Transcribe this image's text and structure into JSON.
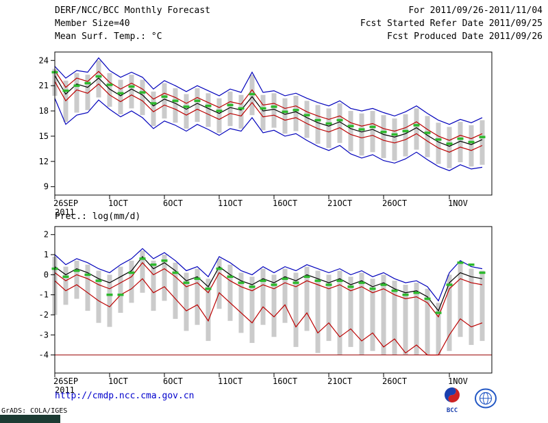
{
  "header": {
    "title": "DERF/NCC/BCC Monthly Forecast",
    "member_size": "Member Size=40",
    "variable_label": "Mean Surf. Temp.: °C",
    "for_range": "For 2011/09/26-2011/11/04",
    "fcst_start": "Fcst Started Refer Date 2011/09/25",
    "fcst_produced": "Fcst Produced Date 2011/09/26"
  },
  "panels": {
    "precip_label": "Prec.: log(mm/d)"
  },
  "footer": {
    "url": "http://cmdp.ncc.cma.gov.cn",
    "grads_credit": "GrADS: COLA/IGES",
    "bcc_label": "BCC"
  },
  "chart_data": [
    {
      "type": "line",
      "title": "Mean Surf. Temp.: °C",
      "xlabel": "",
      "ylabel": "°C",
      "ylim": [
        8,
        25
      ],
      "yticks": [
        9,
        12,
        15,
        18,
        21,
        24
      ],
      "x_tick_labels": [
        "26SEP",
        "1OCT",
        "6OCT",
        "11OCT",
        "16OCT",
        "21OCT",
        "26OCT",
        "1NOV"
      ],
      "x_tick_days": [
        0,
        5,
        10,
        15,
        20,
        25,
        30,
        36
      ],
      "x_year_label": "2011",
      "n_days": 40,
      "grid": false,
      "legend": "none",
      "bars": {
        "name": "ensemble-spread-bar",
        "color": "#cbcbcb",
        "high": [
          23.0,
          21.6,
          22.5,
          22.3,
          24.0,
          22.5,
          21.7,
          22.3,
          21.7,
          20.3,
          21.3,
          20.7,
          20.0,
          20.7,
          20.1,
          19.5,
          20.3,
          19.9,
          22.3,
          19.9,
          20.1,
          19.5,
          19.8,
          19.2,
          18.7,
          18.3,
          18.9,
          18.0,
          17.7,
          18.0,
          17.5,
          17.1,
          17.6,
          18.3,
          17.4,
          16.6,
          16.1,
          16.7,
          16.3,
          16.9
        ],
        "low": [
          19.8,
          16.7,
          17.8,
          18.1,
          19.6,
          18.5,
          17.6,
          18.3,
          17.5,
          16.2,
          17.1,
          16.6,
          15.9,
          16.7,
          16.1,
          15.4,
          16.2,
          15.9,
          17.5,
          15.7,
          16.0,
          15.3,
          15.6,
          14.8,
          14.1,
          13.6,
          14.2,
          13.2,
          12.7,
          13.1,
          12.4,
          12.1,
          12.6,
          13.4,
          12.5,
          11.7,
          11.2,
          11.9,
          11.4,
          11.6
        ]
      },
      "series": [
        {
          "name": "max-envelope",
          "color": "#0000bb",
          "values": [
            23.3,
            21.9,
            22.8,
            22.6,
            24.3,
            22.8,
            22.0,
            22.6,
            22.0,
            20.6,
            21.6,
            21.0,
            20.3,
            21.0,
            20.4,
            19.8,
            20.6,
            20.2,
            22.6,
            20.2,
            20.4,
            19.8,
            20.1,
            19.5,
            19.0,
            18.6,
            19.2,
            18.3,
            18.0,
            18.3,
            17.8,
            17.4,
            17.9,
            18.6,
            17.7,
            16.9,
            16.4,
            17.0,
            16.6,
            17.2
          ]
        },
        {
          "name": "upper-quartile",
          "color": "#bb0000",
          "values": [
            22.8,
            20.8,
            21.9,
            21.5,
            22.7,
            21.4,
            20.6,
            21.3,
            20.6,
            19.4,
            20.1,
            19.6,
            18.9,
            19.6,
            19.0,
            18.4,
            19.1,
            18.8,
            20.5,
            18.7,
            18.9,
            18.3,
            18.6,
            17.9,
            17.4,
            17.0,
            17.4,
            16.6,
            16.2,
            16.5,
            15.9,
            15.6,
            16.0,
            16.7,
            15.8,
            15.0,
            14.5,
            15.1,
            14.7,
            15.3
          ]
        },
        {
          "name": "ensemble-mean",
          "color": "#000000",
          "values": [
            22.2,
            20.0,
            21.2,
            20.8,
            21.9,
            20.6,
            19.8,
            20.6,
            19.9,
            18.6,
            19.4,
            18.9,
            18.2,
            18.9,
            18.3,
            17.7,
            18.4,
            18.1,
            19.7,
            18.0,
            18.2,
            17.6,
            17.9,
            17.2,
            16.6,
            16.2,
            16.7,
            15.9,
            15.5,
            15.8,
            15.2,
            14.9,
            15.3,
            16.0,
            15.1,
            14.3,
            13.8,
            14.4,
            14.0,
            14.6
          ]
        },
        {
          "name": "lower-quartile",
          "color": "#bb0000",
          "values": [
            21.5,
            19.2,
            20.5,
            20.1,
            21.2,
            19.9,
            19.1,
            19.9,
            19.2,
            17.9,
            18.7,
            18.2,
            17.5,
            18.2,
            17.6,
            17.0,
            17.7,
            17.4,
            19.0,
            17.3,
            17.5,
            16.9,
            17.2,
            16.5,
            15.9,
            15.5,
            16.0,
            15.2,
            14.8,
            15.1,
            14.5,
            14.2,
            14.6,
            15.3,
            14.4,
            13.6,
            13.1,
            13.7,
            13.3,
            13.9
          ]
        },
        {
          "name": "min-envelope",
          "color": "#0000bb",
          "values": [
            19.5,
            16.4,
            17.5,
            17.8,
            19.3,
            18.2,
            17.3,
            18.0,
            17.2,
            15.9,
            16.8,
            16.3,
            15.6,
            16.4,
            15.8,
            15.1,
            15.9,
            15.6,
            17.2,
            15.4,
            15.7,
            15.0,
            15.3,
            14.5,
            13.8,
            13.3,
            13.9,
            12.9,
            12.4,
            12.8,
            12.1,
            11.8,
            12.3,
            13.1,
            12.2,
            11.4,
            10.9,
            11.6,
            11.1,
            11.3
          ]
        }
      ],
      "markers": {
        "name": "control-dash",
        "color": "#2db92d",
        "values": [
          22.6,
          20.4,
          21.0,
          21.3,
          22.1,
          21.1,
          20.1,
          20.9,
          20.2,
          18.9,
          19.7,
          19.2,
          18.5,
          19.2,
          18.6,
          18.0,
          18.7,
          18.3,
          20.0,
          18.3,
          18.5,
          17.9,
          18.1,
          17.5,
          16.9,
          16.5,
          16.9,
          16.2,
          15.8,
          16.1,
          15.5,
          15.2,
          15.6,
          16.3,
          15.4,
          14.6,
          14.1,
          14.7,
          14.3,
          14.9
        ]
      }
    },
    {
      "type": "line",
      "title": "Prec.: log(mm/d)",
      "xlabel": "",
      "ylabel": "log(mm/d)",
      "ylim": [
        -4.9,
        2.4
      ],
      "yticks": [
        -4,
        -3,
        -2,
        -1,
        0,
        1,
        2
      ],
      "x_tick_labels": [
        "26SEP",
        "1OCT",
        "6OCT",
        "11OCT",
        "16OCT",
        "21OCT",
        "26OCT",
        "1NOV"
      ],
      "x_tick_days": [
        0,
        5,
        10,
        15,
        20,
        25,
        30,
        36
      ],
      "x_year_label": "2011",
      "n_days": 40,
      "grid": false,
      "legend": "none",
      "baseline": {
        "name": "floor-line",
        "value": -4,
        "color": "#990000"
      },
      "bars": {
        "name": "ensemble-spread-bar",
        "color": "#cbcbcb",
        "high": [
          0.9,
          0.4,
          0.7,
          0.5,
          0.2,
          0.0,
          0.4,
          0.7,
          1.2,
          0.7,
          1.0,
          0.6,
          0.1,
          0.3,
          -0.2,
          0.8,
          0.5,
          0.1,
          -0.1,
          0.3,
          0.0,
          0.3,
          0.1,
          0.4,
          0.2,
          0.0,
          0.2,
          -0.1,
          0.1,
          -0.2,
          0.0,
          -0.3,
          -0.5,
          -0.4,
          -0.7,
          -1.4,
          0.0,
          0.6,
          0.3,
          0.2
        ],
        "low": [
          -2.0,
          -1.5,
          -1.2,
          -1.8,
          -2.4,
          -2.6,
          -1.9,
          -1.4,
          -0.9,
          -1.8,
          -1.3,
          -2.2,
          -2.8,
          -2.5,
          -3.3,
          -1.7,
          -2.3,
          -2.9,
          -3.4,
          -2.5,
          -3.1,
          -2.4,
          -3.6,
          -2.8,
          -3.9,
          -3.3,
          -4.0,
          -3.6,
          -4.0,
          -3.8,
          -4.0,
          -4.0,
          -4.0,
          -4.0,
          -4.0,
          -4.0,
          -3.8,
          -3.1,
          -3.5,
          -3.3
        ]
      },
      "series": [
        {
          "name": "max-envelope",
          "color": "#0000bb",
          "values": [
            1.0,
            0.5,
            0.8,
            0.6,
            0.3,
            0.1,
            0.5,
            0.8,
            1.3,
            0.8,
            1.1,
            0.7,
            0.2,
            0.4,
            -0.1,
            0.9,
            0.6,
            0.2,
            0.0,
            0.4,
            0.1,
            0.4,
            0.2,
            0.5,
            0.3,
            0.1,
            0.3,
            0.0,
            0.2,
            -0.1,
            0.1,
            -0.2,
            -0.4,
            -0.3,
            -0.6,
            -1.3,
            0.1,
            0.7,
            0.4,
            0.3
          ]
        },
        {
          "name": "ensemble-mean",
          "color": "#000000",
          "values": [
            0.4,
            0.0,
            0.3,
            0.1,
            -0.2,
            -0.4,
            -0.1,
            0.2,
            0.9,
            0.3,
            0.6,
            0.2,
            -0.3,
            -0.1,
            -0.6,
            0.4,
            0.0,
            -0.3,
            -0.5,
            -0.2,
            -0.4,
            -0.1,
            -0.3,
            0.0,
            -0.2,
            -0.4,
            -0.2,
            -0.5,
            -0.3,
            -0.6,
            -0.4,
            -0.7,
            -0.9,
            -0.8,
            -1.1,
            -1.8,
            -0.4,
            0.1,
            -0.1,
            -0.2
          ]
        },
        {
          "name": "upper-quartile",
          "color": "#bb0000",
          "values": [
            0.1,
            -0.3,
            0.0,
            -0.2,
            -0.5,
            -0.7,
            -0.4,
            -0.1,
            0.6,
            0.0,
            0.3,
            -0.1,
            -0.6,
            -0.4,
            -0.9,
            0.1,
            -0.3,
            -0.6,
            -0.8,
            -0.5,
            -0.7,
            -0.4,
            -0.6,
            -0.3,
            -0.5,
            -0.7,
            -0.5,
            -0.8,
            -0.6,
            -0.9,
            -0.7,
            -1.0,
            -1.2,
            -1.1,
            -1.4,
            -2.1,
            -0.7,
            -0.2,
            -0.4,
            -0.5
          ]
        },
        {
          "name": "lower-quartile",
          "color": "#bb0000",
          "values": [
            -0.3,
            -0.8,
            -0.5,
            -0.9,
            -1.3,
            -1.6,
            -1.0,
            -0.7,
            -0.2,
            -0.9,
            -0.6,
            -1.2,
            -1.8,
            -1.5,
            -2.3,
            -0.9,
            -1.4,
            -1.9,
            -2.4,
            -1.6,
            -2.1,
            -1.5,
            -2.6,
            -1.9,
            -2.9,
            -2.4,
            -3.1,
            -2.7,
            -3.3,
            -2.9,
            -3.6,
            -3.2,
            -3.9,
            -3.5,
            -4.0,
            -4.0,
            -3.0,
            -2.2,
            -2.6,
            -2.4
          ]
        }
      ],
      "markers": {
        "name": "control-dash",
        "color": "#2db92d",
        "values": [
          0.3,
          -0.1,
          0.2,
          0.0,
          -0.3,
          -1.0,
          -1.0,
          0.1,
          0.8,
          0.5,
          0.7,
          0.1,
          -0.4,
          -0.2,
          -0.7,
          0.3,
          -0.1,
          -0.4,
          -0.6,
          -0.3,
          -0.5,
          -0.2,
          -0.4,
          -0.1,
          -0.3,
          -0.5,
          -0.3,
          -0.6,
          -0.4,
          -0.7,
          -0.5,
          -0.8,
          -1.0,
          -0.9,
          -1.2,
          -1.9,
          -0.5,
          0.6,
          0.5,
          0.1
        ]
      }
    }
  ]
}
